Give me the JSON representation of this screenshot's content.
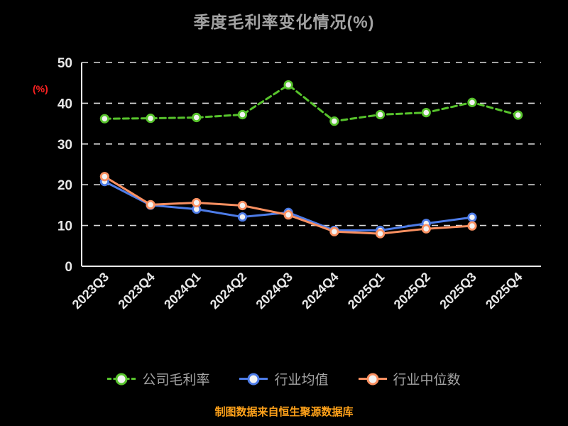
{
  "chart": {
    "title": "季度毛利率变化情况(%)",
    "y_axis_unit": "(%)",
    "footer": "制图数据来自恒生聚源数据库",
    "colors": {
      "background": "#000000",
      "title": "#a3a3a3",
      "axis": "#e9e9e9",
      "grid": "#d9d9d9",
      "tick_label": "#e9e9e9",
      "y_unit_label": "#ff2222",
      "legend_text": "#a3a3a3",
      "footer_text": "#ffa21a",
      "marker_fill": "#f2f2f2"
    }
  },
  "chart_data": {
    "type": "line",
    "title": "季度毛利率变化情况(%)",
    "xlabel": "",
    "ylabel": "(%)",
    "ylim": [
      0,
      50
    ],
    "y_ticks": [
      0,
      10,
      20,
      30,
      40,
      50
    ],
    "grid": true,
    "grid_style": "dashed",
    "legend_position": "bottom",
    "categories": [
      "2023Q3",
      "2023Q4",
      "2024Q1",
      "2024Q2",
      "2024Q3",
      "2024Q4",
      "2025Q1",
      "2025Q2",
      "2025Q3",
      "2025Q4"
    ],
    "series": [
      {
        "name": "公司毛利率",
        "color": "#57c32c",
        "dashed": true,
        "values": [
          36.2,
          36.3,
          36.5,
          37.2,
          44.5,
          35.6,
          37.2,
          37.7,
          40.2,
          37.1
        ]
      },
      {
        "name": "行业均值",
        "color": "#4d7ce8",
        "dashed": false,
        "values": [
          20.8,
          15.0,
          14.0,
          12.1,
          13.2,
          8.8,
          8.8,
          10.5,
          12.0,
          null
        ]
      },
      {
        "name": "行业中位数",
        "color": "#fa9061",
        "dashed": false,
        "values": [
          22.0,
          15.1,
          15.6,
          14.9,
          12.6,
          8.5,
          8.0,
          9.2,
          9.9,
          null
        ]
      }
    ]
  }
}
